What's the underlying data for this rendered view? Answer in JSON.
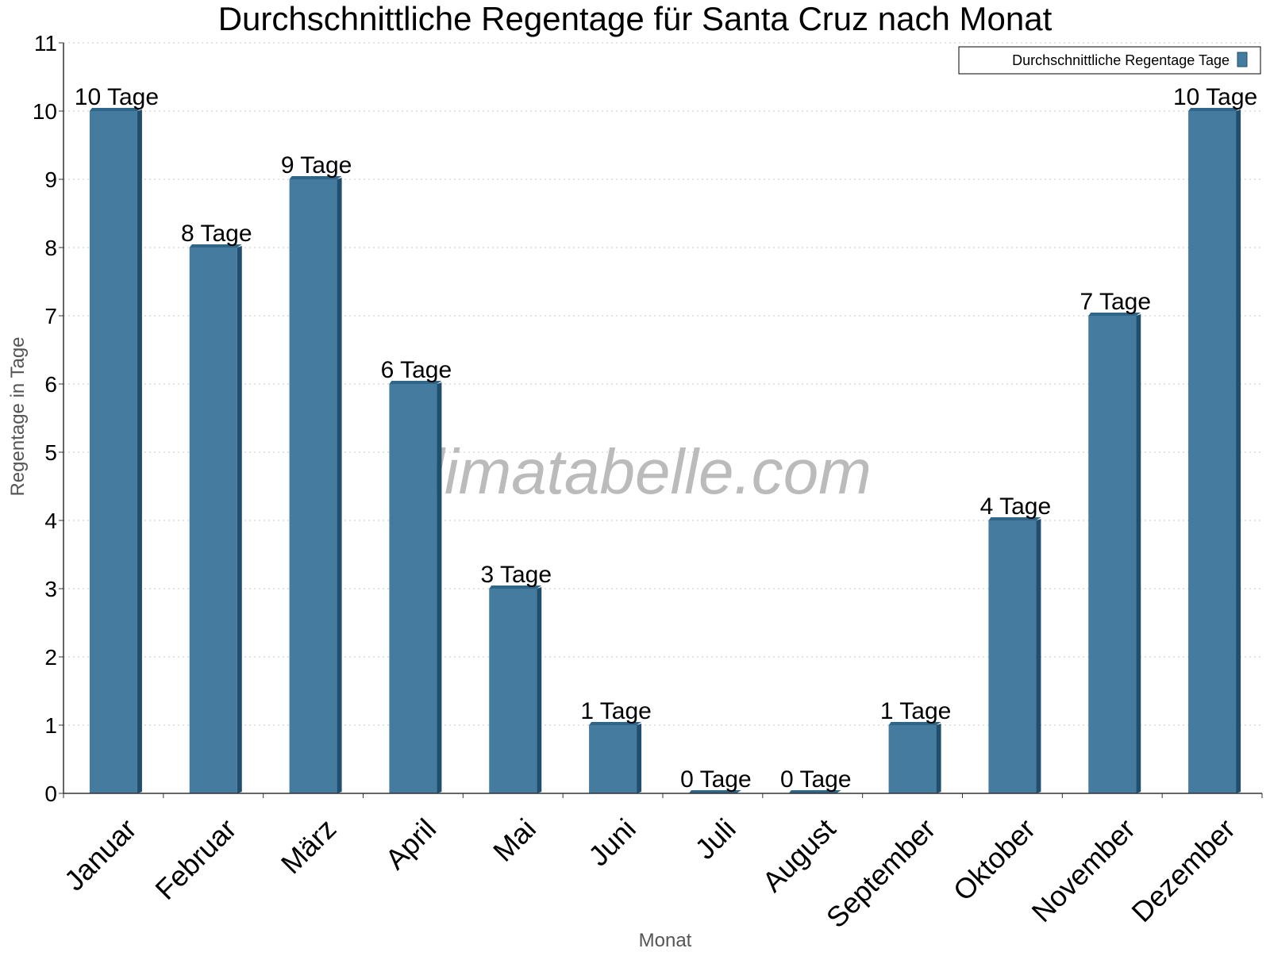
{
  "watermark": "klimatabelle.com",
  "colors": {
    "bar_face": "#447b9e",
    "bar_top": "#2f6688",
    "bar_side": "#1f4e6e",
    "grid": "#c8c8c8",
    "axis": "#333333",
    "watermark": "#bbbbbb"
  },
  "chart_data": {
    "type": "bar",
    "title": "Durchschnittliche Regentage für Santa Cruz nach Monat",
    "xlabel": "Monat",
    "ylabel": "Regentage in Tage",
    "ylim": [
      0,
      11
    ],
    "yticks": [
      "0",
      "1",
      "2",
      "3",
      "4",
      "5",
      "6",
      "7",
      "8",
      "9",
      "10",
      "11"
    ],
    "grid": true,
    "legend_position": "top-right",
    "categories": [
      "Januar",
      "Februar",
      "März",
      "April",
      "Mai",
      "Juni",
      "Juli",
      "August",
      "September",
      "Oktober",
      "November",
      "Dezember"
    ],
    "series": [
      {
        "name": "Durchschnittliche Regentage Tage",
        "values": [
          10,
          8,
          9,
          6,
          3,
          1,
          0,
          0,
          1,
          4,
          7,
          10
        ],
        "labels": [
          "10 Tage",
          "8 Tage",
          "9 Tage",
          "6 Tage",
          "3 Tage",
          "1 Tage",
          "0 Tage",
          "0 Tage",
          "1 Tage",
          "4 Tage",
          "7 Tage",
          "10 Tage"
        ]
      }
    ]
  }
}
